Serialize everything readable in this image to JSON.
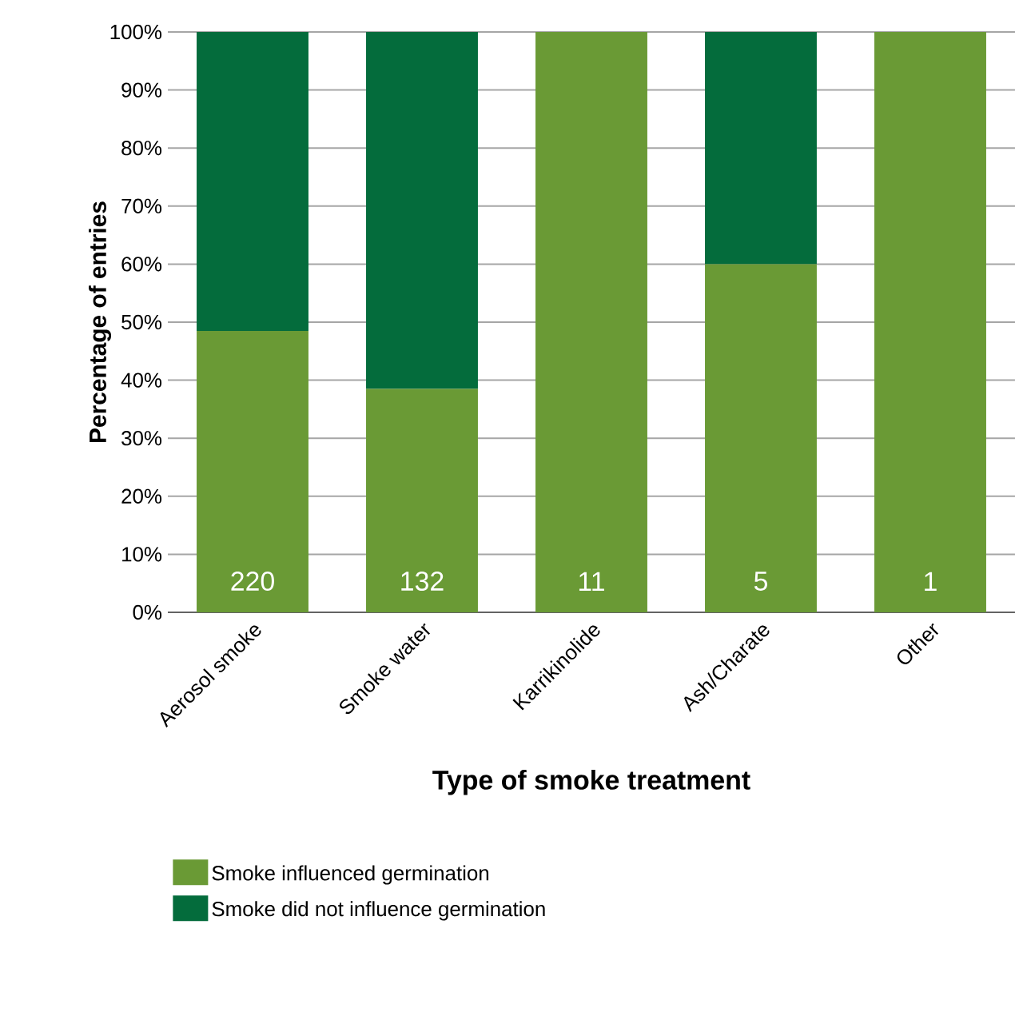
{
  "chart_data": {
    "type": "bar",
    "stacked": true,
    "xlabel": "Type of smoke treatment",
    "ylabel": "Percentage of entries",
    "categories": [
      "Aerosol smoke",
      "Smoke water",
      "Karrikinolide",
      "Ash/Charate",
      "Other"
    ],
    "series": [
      {
        "name": "Smoke influenced germination",
        "color": "#6a9a35",
        "values": [
          48.5,
          38.5,
          100,
          60,
          100
        ]
      },
      {
        "name": "Smoke did not influence germination",
        "color": "#046c3c",
        "values": [
          51.5,
          61.5,
          0,
          40,
          0
        ]
      }
    ],
    "ylim": [
      0,
      100
    ],
    "yticks": [
      {
        "value": 0,
        "label": "0%"
      },
      {
        "value": 10,
        "label": "10%"
      },
      {
        "value": 20,
        "label": "20%"
      },
      {
        "value": 30,
        "label": "30%"
      },
      {
        "value": 40,
        "label": "40%"
      },
      {
        "value": 50,
        "label": "50%"
      },
      {
        "value": 60,
        "label": "60%"
      },
      {
        "value": 70,
        "label": "70%"
      },
      {
        "value": 80,
        "label": "80%"
      },
      {
        "value": 90,
        "label": "90%"
      },
      {
        "value": 100,
        "label": "100%"
      }
    ],
    "grid": "y",
    "legend": "bottom",
    "annotations": [
      "220",
      "132",
      "11",
      "5",
      "1"
    ]
  }
}
